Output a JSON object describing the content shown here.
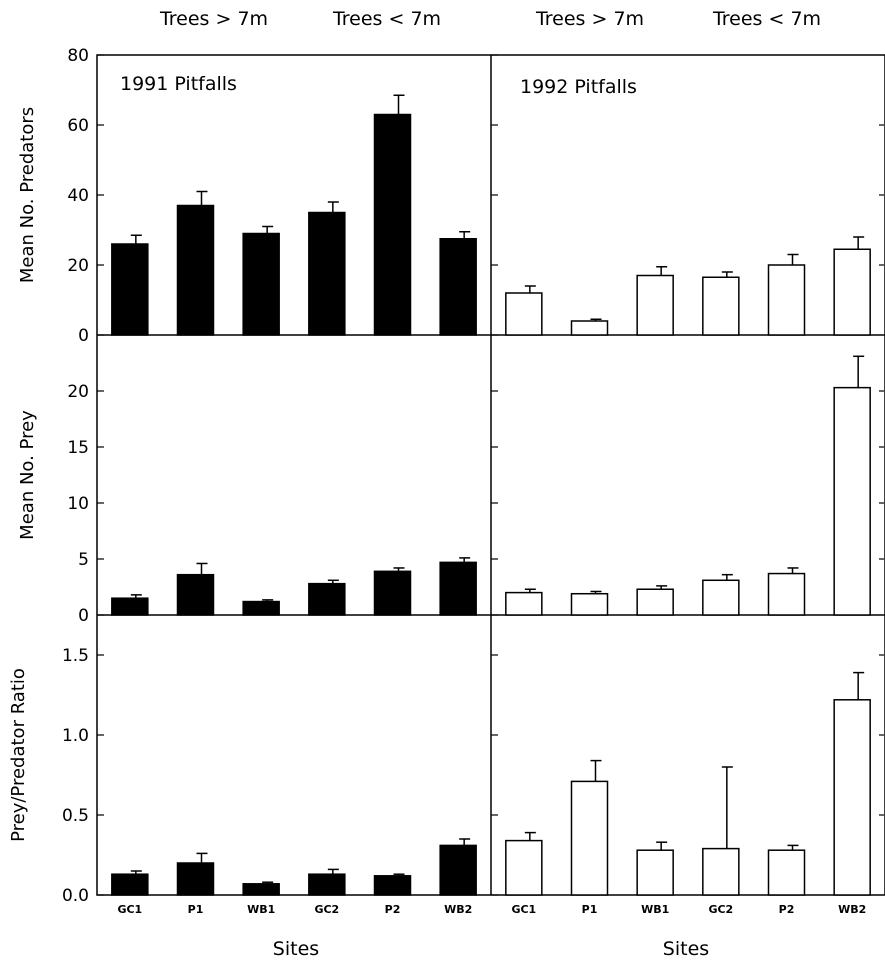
{
  "chart_data": [
    {
      "type": "bar",
      "panel": "predators-1991",
      "title": "1991 Pitfalls",
      "ylabel": "Mean No. Predators",
      "xlabel": "",
      "categories": [
        "GC1",
        "P1",
        "WB1",
        "GC2",
        "P2",
        "WB2"
      ],
      "values": [
        26,
        37,
        29,
        35,
        63,
        27.5
      ],
      "errors": [
        2.5,
        4,
        2,
        3,
        5.5,
        2
      ],
      "ylim": [
        0,
        80
      ],
      "yticks": [
        0,
        20,
        40,
        60,
        80
      ],
      "ytick_labels": [
        "0",
        "20",
        "40",
        "60",
        "80"
      ],
      "fill": "solid"
    },
    {
      "type": "bar",
      "panel": "predators-1992",
      "title": "1992 Pitfalls",
      "ylabel": "",
      "xlabel": "",
      "categories": [
        "GC1",
        "P1",
        "WB1",
        "GC2",
        "P2",
        "WB2"
      ],
      "values": [
        12,
        4,
        17,
        16.5,
        20,
        24.5
      ],
      "errors": [
        2,
        0.5,
        2.5,
        1.5,
        3,
        3.5
      ],
      "ylim": [
        0,
        80
      ],
      "yticks": [
        0,
        20,
        40,
        60,
        80
      ],
      "fill": "open"
    },
    {
      "type": "bar",
      "panel": "prey-1991",
      "title": "",
      "ylabel": "Mean No. Prey",
      "xlabel": "",
      "categories": [
        "GC1",
        "P1",
        "WB1",
        "GC2",
        "P2",
        "WB2"
      ],
      "values": [
        1.5,
        3.6,
        1.2,
        2.8,
        3.9,
        4.7
      ],
      "errors": [
        0.3,
        1.0,
        0.15,
        0.3,
        0.3,
        0.4
      ],
      "ylim": [
        0,
        25
      ],
      "yticks": [
        0,
        5,
        10,
        15,
        20
      ],
      "ytick_labels": [
        "0",
        "5",
        "10",
        "15",
        "20"
      ],
      "fill": "solid"
    },
    {
      "type": "bar",
      "panel": "prey-1992",
      "title": "",
      "ylabel": "",
      "xlabel": "",
      "categories": [
        "GC1",
        "P1",
        "WB1",
        "GC2",
        "P2",
        "WB2"
      ],
      "values": [
        2.0,
        1.9,
        2.3,
        3.1,
        3.7,
        20.3
      ],
      "errors": [
        0.3,
        0.2,
        0.3,
        0.5,
        0.5,
        2.8
      ],
      "ylim": [
        0,
        25
      ],
      "yticks": [
        0,
        5,
        10,
        15,
        20
      ],
      "fill": "open"
    },
    {
      "type": "bar",
      "panel": "ratio-1991",
      "title": "",
      "ylabel": "Prey/Predator Ratio",
      "xlabel": "Sites",
      "categories": [
        "GC1",
        "P1",
        "WB1",
        "GC2",
        "P2",
        "WB2"
      ],
      "values": [
        0.13,
        0.2,
        0.07,
        0.13,
        0.12,
        0.31
      ],
      "errors": [
        0.02,
        0.06,
        0.01,
        0.03,
        0.01,
        0.04
      ],
      "ylim": [
        0,
        1.75
      ],
      "yticks": [
        0,
        0.5,
        1.0,
        1.5
      ],
      "ytick_labels": [
        "0.0",
        "0.5",
        "1.0",
        "1.5"
      ],
      "fill": "solid"
    },
    {
      "type": "bar",
      "panel": "ratio-1992",
      "title": "",
      "ylabel": "",
      "xlabel": "Sites",
      "categories": [
        "GC1",
        "P1",
        "WB1",
        "GC2",
        "P2",
        "WB2"
      ],
      "values": [
        0.34,
        0.71,
        0.28,
        0.29,
        0.28,
        1.22
      ],
      "errors": [
        0.05,
        0.13,
        0.05,
        0.51,
        0.03,
        0.17
      ],
      "ylim": [
        0,
        1.75
      ],
      "yticks": [
        0,
        0.5,
        1.0,
        1.5
      ],
      "fill": "open"
    }
  ],
  "top_labels": [
    "Trees > 7m",
    "Trees < 7m",
    "Trees > 7m",
    "Trees < 7m"
  ],
  "colors": {
    "ink": "#000000",
    "paper": "#ffffff"
  }
}
